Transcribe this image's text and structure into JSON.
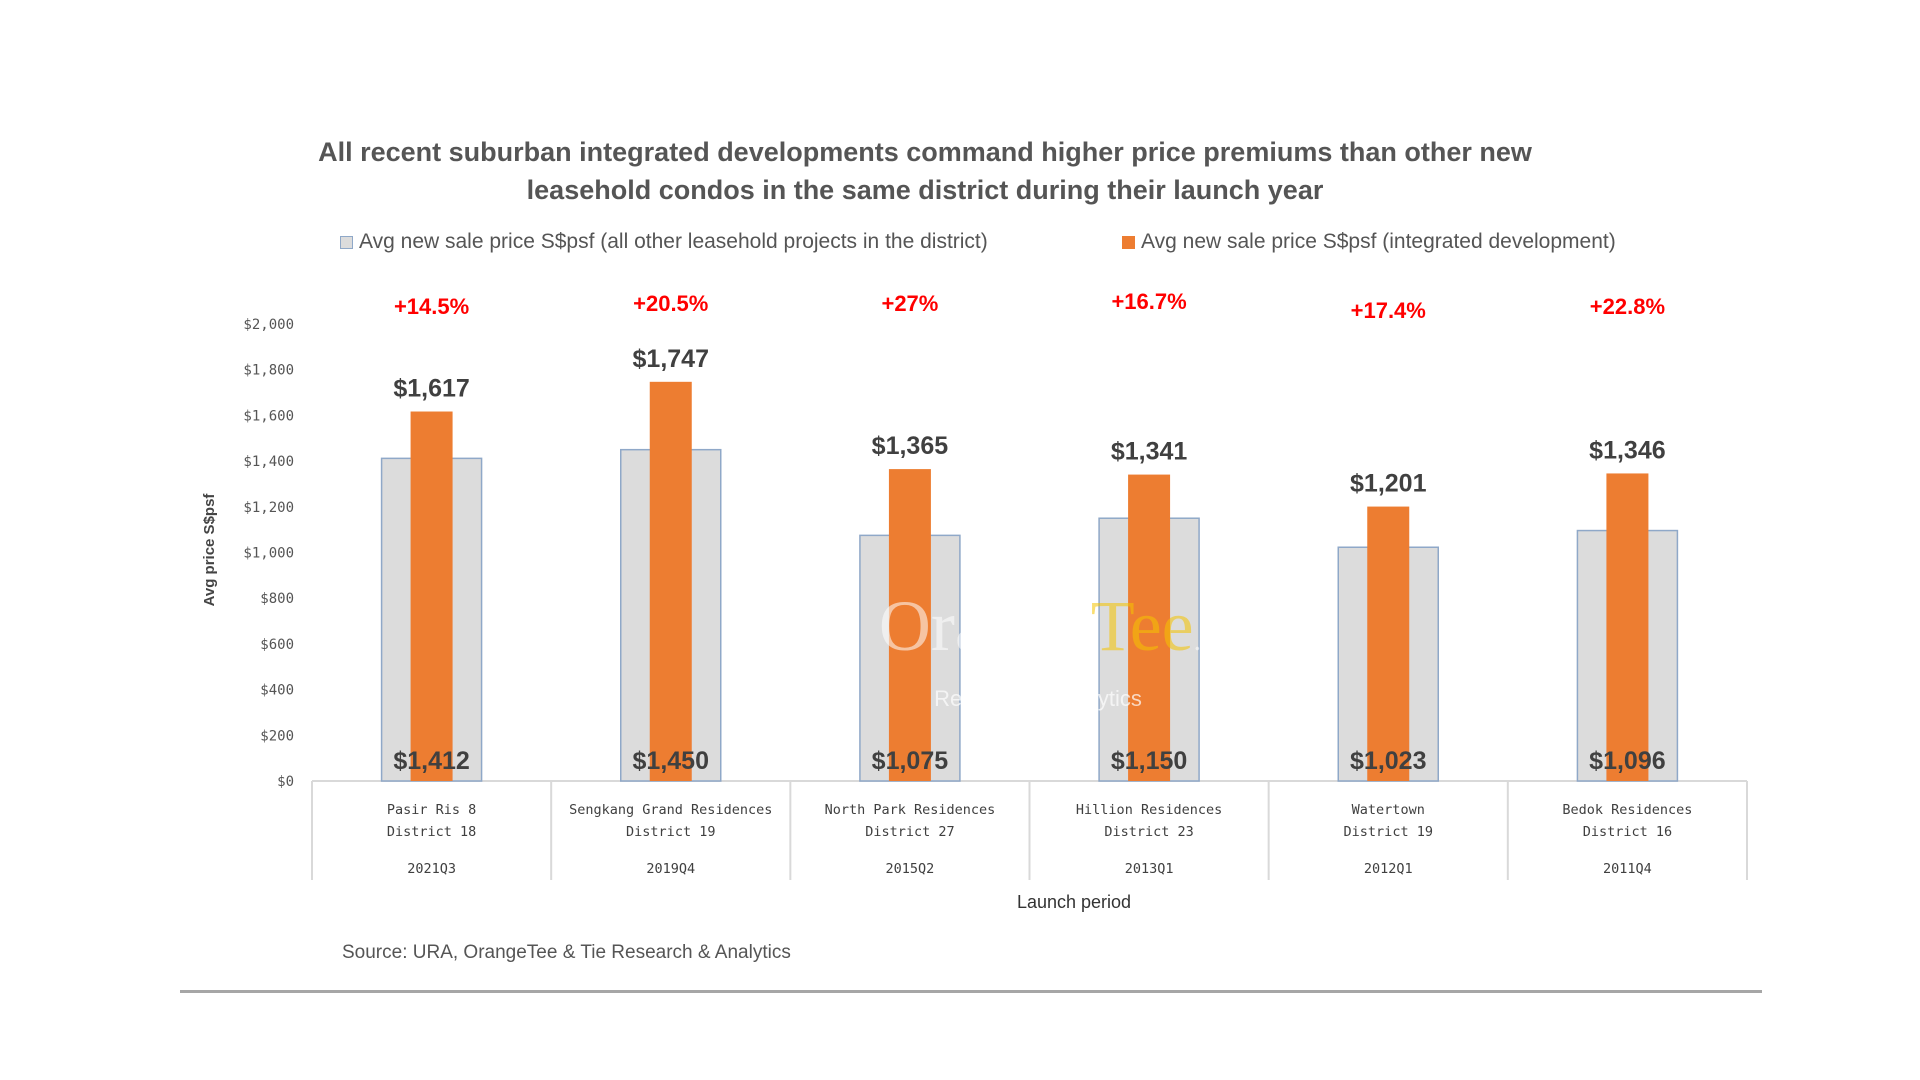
{
  "chart_data": {
    "type": "bar",
    "title_lines": [
      "All recent suburban integrated developments command higher price premiums than other new",
      "leasehold condos in the same district during their launch year"
    ],
    "ylabel": "Avg price S$psf",
    "xlabel": "Launch period",
    "ylim": [
      0,
      2000
    ],
    "y_ticks": [
      "$0",
      "$200",
      "$400",
      "$600",
      "$800",
      "$1,000",
      "$1,200",
      "$1,400",
      "$1,600",
      "$1,800",
      "$2,000"
    ],
    "grid": false,
    "legend_position": "top",
    "categories": [
      {
        "name": "Pasir Ris 8",
        "district": "District 18",
        "period": "2021Q3"
      },
      {
        "name": "Sengkang Grand Residences",
        "district": "District 19",
        "period": "2019Q4"
      },
      {
        "name": "North Park Residences",
        "district": "District 27",
        "period": "2015Q2"
      },
      {
        "name": "Hillion Residences",
        "district": "District 23",
        "period": "2013Q1"
      },
      {
        "name": "Watertown",
        "district": "District 19",
        "period": "2012Q1"
      },
      {
        "name": "Bedok Residences",
        "district": "District 16",
        "period": "2011Q4"
      }
    ],
    "series": [
      {
        "name": "Avg new sale price S$psf (all other leasehold projects in the district)",
        "color": "#dcdcdc",
        "values": [
          1412,
          1450,
          1075,
          1150,
          1023,
          1096
        ],
        "labels": [
          "$1,412",
          "$1,450",
          "$1,075",
          "$1,150",
          "$1,023",
          "$1,096"
        ]
      },
      {
        "name": "Avg new sale price S$psf (integrated development)",
        "color": "#ed7d31",
        "values": [
          1617,
          1747,
          1365,
          1341,
          1201,
          1346
        ],
        "labels": [
          "$1,617",
          "$1,747",
          "$1,365",
          "$1,341",
          "$1,201",
          "$1,346"
        ]
      }
    ],
    "premiums": [
      "+14.5%",
      "+20.5%",
      "+27%",
      "+16.7%",
      "+17.4%",
      "+22.8%"
    ],
    "premium_color": "#ff0000",
    "source": "Source: URA, OrangeTee & Tie Research & Analytics"
  },
  "watermark": {
    "brand_part1": "Orange",
    "brand_part2": "Tee",
    "brand_suffix": ".",
    "tagline": "Research & Analytics",
    "color_part2": "#f5c400"
  }
}
